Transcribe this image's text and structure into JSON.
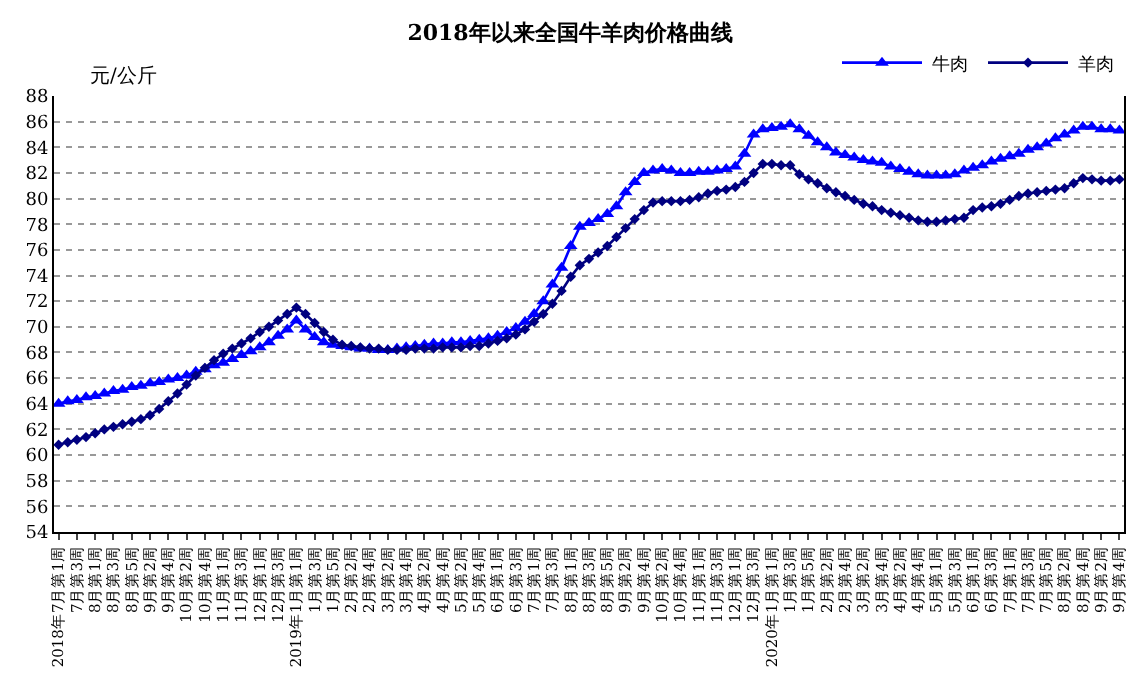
{
  "chart_data": {
    "type": "line",
    "title": "2018年以来全国牛羊肉价格曲线",
    "ylabel": "元/公斤",
    "categories": [
      "2018年7月第1周",
      null,
      "7月第3周",
      null,
      "8月第1周",
      null,
      "8月第3周",
      null,
      "8月第5周",
      null,
      "9月第2周",
      null,
      "9月第4周",
      null,
      "10月第2周",
      null,
      "10月第4周",
      null,
      "11月第1周",
      null,
      "11月第3周",
      null,
      "12月第1周",
      null,
      "12月第3周",
      null,
      "2019年1月第1周",
      null,
      "1月第3周",
      null,
      "1月第5周",
      null,
      "2月第2周",
      null,
      "2月第4周",
      null,
      "3月第2周",
      null,
      "3月第4周",
      null,
      "4月第2周",
      null,
      "4月第4周",
      null,
      "5月第2周",
      null,
      "5月第4周",
      null,
      "6月第1周",
      null,
      "6月第3周",
      null,
      "7月第1周",
      null,
      "7月第3周",
      null,
      "8月第1周",
      null,
      "8月第3周",
      null,
      "8月第5周",
      null,
      "9月第2周",
      null,
      "9月第4周",
      null,
      "10月第2周",
      null,
      "10月第4周",
      null,
      "11月第1周",
      null,
      "11月第3周",
      null,
      "12月第1周",
      null,
      "12月第3周",
      null,
      "2020年1月第1周",
      null,
      "1月第3周",
      null,
      "1月第5周",
      null,
      "2月第2周",
      null,
      "2月第4周",
      null,
      "3月第2周",
      null,
      "3月第4周",
      null,
      "4月第2周",
      null,
      "4月第4周",
      null,
      "5月第1周",
      null,
      "5月第3周",
      null,
      "6月第1周",
      null,
      "6月第3周",
      null,
      "7月第1周",
      null,
      "7月第3周",
      null,
      "7月第5周",
      null,
      "8月第2周",
      null,
      "8月第4周",
      null,
      "9月第2周",
      null,
      "9月第4周"
    ],
    "series": [
      {
        "name": "牛肉",
        "color": "#0000ff",
        "marker": "triangle",
        "values": [
          64.0,
          64.2,
          64.3,
          64.5,
          64.6,
          64.8,
          65.0,
          65.1,
          65.3,
          65.4,
          65.6,
          65.7,
          65.9,
          66.0,
          66.2,
          66.5,
          66.7,
          67.0,
          67.2,
          67.5,
          67.8,
          68.1,
          68.4,
          68.8,
          69.3,
          69.8,
          70.5,
          69.8,
          69.2,
          68.8,
          68.6,
          68.5,
          68.4,
          68.3,
          68.3,
          68.2,
          68.2,
          68.3,
          68.4,
          68.5,
          68.6,
          68.7,
          68.7,
          68.8,
          68.8,
          68.9,
          69.0,
          69.1,
          69.3,
          69.6,
          69.9,
          70.4,
          71.0,
          72.0,
          73.3,
          74.6,
          76.3,
          77.8,
          78.1,
          78.4,
          78.8,
          79.4,
          80.5,
          81.3,
          82.0,
          82.2,
          82.3,
          82.2,
          82.0,
          82.0,
          82.1,
          82.1,
          82.2,
          82.3,
          82.5,
          83.5,
          85.0,
          85.4,
          85.5,
          85.6,
          85.8,
          85.4,
          84.9,
          84.4,
          84.0,
          83.6,
          83.4,
          83.2,
          83.0,
          82.9,
          82.8,
          82.5,
          82.3,
          82.1,
          81.9,
          81.8,
          81.8,
          81.8,
          81.9,
          82.2,
          82.4,
          82.6,
          82.9,
          83.1,
          83.3,
          83.5,
          83.8,
          84.0,
          84.3,
          84.7,
          85.0,
          85.3,
          85.6,
          85.6,
          85.4,
          85.4,
          85.3
        ]
      },
      {
        "name": "羊肉",
        "color": "#000080",
        "marker": "diamond",
        "values": [
          60.8,
          61.0,
          61.2,
          61.4,
          61.7,
          62.0,
          62.2,
          62.4,
          62.6,
          62.8,
          63.1,
          63.6,
          64.2,
          64.8,
          65.5,
          66.2,
          66.8,
          67.4,
          67.9,
          68.3,
          68.7,
          69.1,
          69.6,
          70.0,
          70.5,
          71.0,
          71.5,
          71.0,
          70.3,
          69.6,
          69.0,
          68.6,
          68.5,
          68.4,
          68.3,
          68.3,
          68.2,
          68.2,
          68.2,
          68.3,
          68.3,
          68.3,
          68.4,
          68.4,
          68.4,
          68.5,
          68.5,
          68.7,
          68.9,
          69.1,
          69.4,
          69.8,
          70.4,
          71.0,
          71.8,
          72.8,
          73.9,
          74.8,
          75.3,
          75.8,
          76.3,
          77.0,
          77.7,
          78.4,
          79.1,
          79.7,
          79.8,
          79.8,
          79.8,
          79.9,
          80.1,
          80.4,
          80.6,
          80.7,
          80.9,
          81.3,
          82.0,
          82.7,
          82.7,
          82.6,
          82.6,
          81.9,
          81.5,
          81.2,
          80.8,
          80.5,
          80.2,
          79.9,
          79.6,
          79.4,
          79.1,
          78.9,
          78.7,
          78.5,
          78.3,
          78.2,
          78.2,
          78.3,
          78.4,
          78.5,
          79.1,
          79.3,
          79.4,
          79.6,
          79.9,
          80.2,
          80.4,
          80.5,
          80.6,
          80.7,
          80.8,
          81.2,
          81.6,
          81.5,
          81.4,
          81.4,
          81.5
        ]
      }
    ],
    "ylim": [
      54,
      88
    ],
    "yticks": [
      54,
      56,
      58,
      60,
      62,
      64,
      66,
      68,
      70,
      72,
      74,
      76,
      78,
      80,
      82,
      84,
      86,
      88
    ],
    "grid": "y",
    "legend": "top right",
    "line_style": "solid"
  }
}
